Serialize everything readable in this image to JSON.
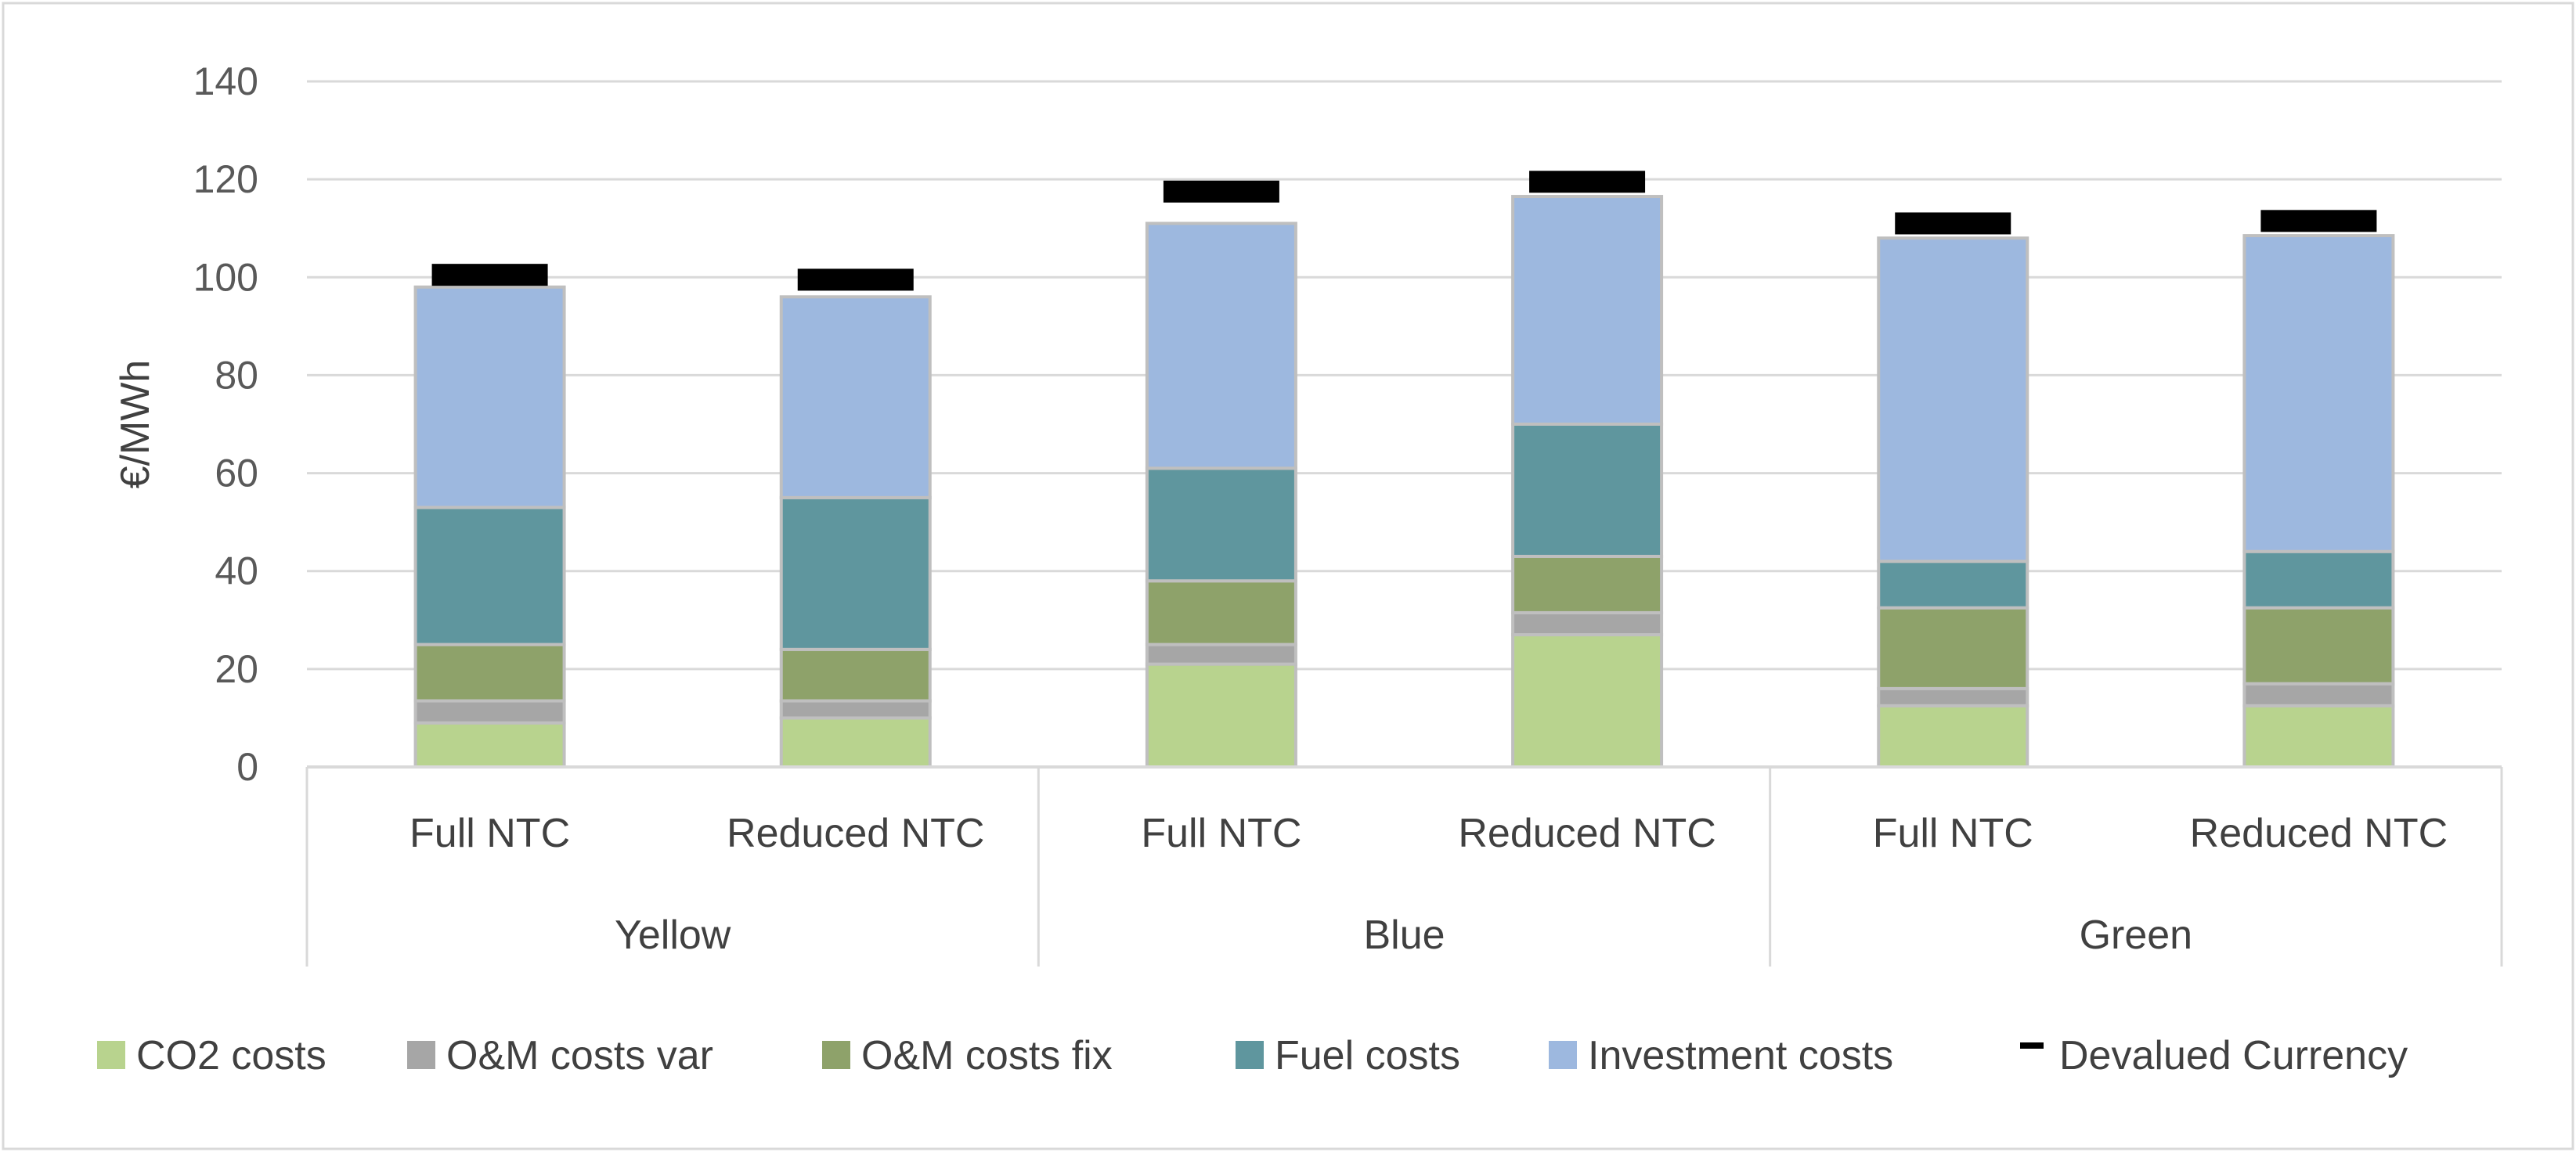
{
  "chart_data": {
    "type": "bar",
    "stacked": true,
    "title": "",
    "xlabel": "",
    "ylabel": "€/MWh",
    "ylim": [
      0,
      140
    ],
    "yticks": [
      0,
      20,
      40,
      60,
      80,
      100,
      120,
      140
    ],
    "grid": true,
    "legend_position": "bottom",
    "groups": [
      {
        "label": "Yellow",
        "categories": [
          "Full NTC",
          "Reduced NTC"
        ]
      },
      {
        "label": "Blue",
        "categories": [
          "Full NTC",
          "Reduced NTC"
        ]
      },
      {
        "label": "Green",
        "categories": [
          "Full NTC",
          "Reduced NTC"
        ]
      }
    ],
    "series": [
      {
        "name": "CO2 costs",
        "color": "#b8d38e",
        "values": [
          9,
          10,
          21,
          27,
          12.5,
          12.5
        ]
      },
      {
        "name": "O&M costs var",
        "color": "#a6a6a6",
        "values": [
          4.5,
          3.5,
          4,
          4.5,
          3.5,
          4.5
        ]
      },
      {
        "name": "O&M costs fix",
        "color": "#8ea26a",
        "values": [
          11.5,
          10.5,
          13,
          11.5,
          16.5,
          15.5
        ]
      },
      {
        "name": "Fuel costs",
        "color": "#5f969e",
        "values": [
          28,
          31,
          23,
          27,
          9.5,
          11.5
        ]
      },
      {
        "name": "Investment costs",
        "color": "#9db8df",
        "values": [
          45,
          41,
          50,
          46.5,
          66,
          64.5
        ]
      }
    ],
    "marker_series": {
      "name": "Devalued Currency",
      "color": "#000000",
      "values": [
        100.5,
        99.5,
        117.5,
        119.5,
        111,
        111.5
      ]
    }
  }
}
